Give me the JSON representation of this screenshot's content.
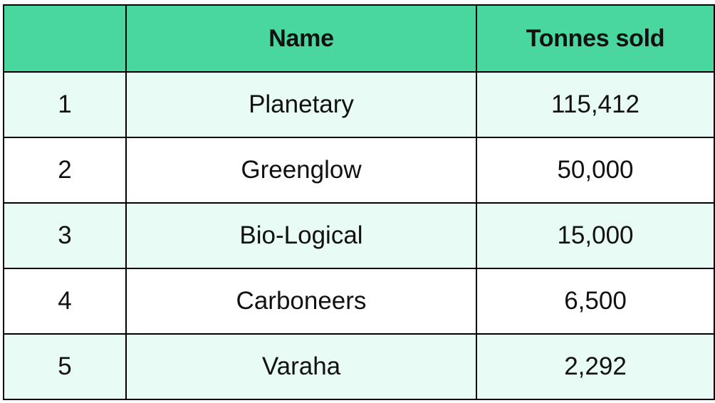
{
  "colors": {
    "header_bg": "#4ad79f",
    "row_alt_bg": "#e8fbf5",
    "row_bg": "#ffffff",
    "border": "#000000"
  },
  "table": {
    "headers": [
      "",
      "Name",
      "Tonnes sold"
    ],
    "rows": [
      {
        "rank": "1",
        "name": "Planetary",
        "tonnes": "115,412"
      },
      {
        "rank": "2",
        "name": "Greenglow",
        "tonnes": "50,000"
      },
      {
        "rank": "3",
        "name": "Bio-Logical",
        "tonnes": "15,000"
      },
      {
        "rank": "4",
        "name": "Carboneers",
        "tonnes": "6,500"
      },
      {
        "rank": "5",
        "name": "Varaha",
        "tonnes": "2,292"
      }
    ]
  }
}
